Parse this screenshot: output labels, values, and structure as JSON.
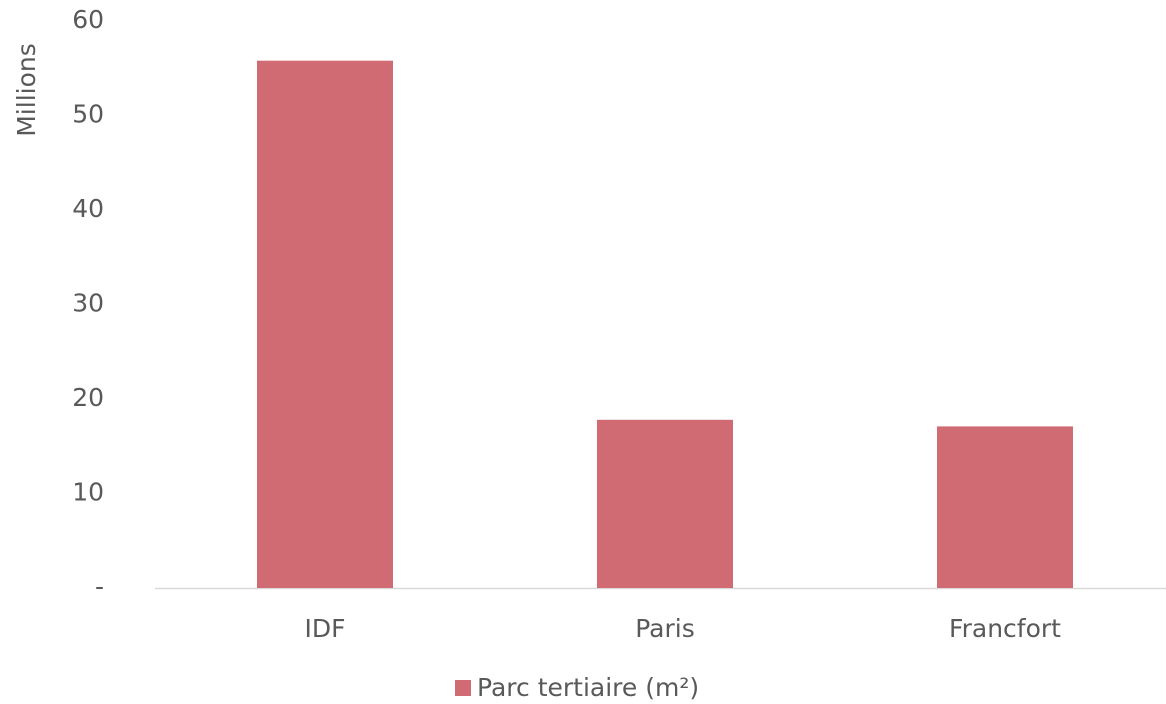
{
  "chart_data": {
    "type": "bar",
    "ylabel": "Millions",
    "categories": [
      "IDF",
      "Paris",
      "Francfort"
    ],
    "series": [
      {
        "name": "Parc tertiaire (m²)",
        "color": "#d16b73",
        "values": [
          55.8,
          17.8,
          17.1
        ]
      }
    ],
    "ylim": [
      0,
      60
    ],
    "yticks": [
      {
        "value": 0,
        "label": "-"
      },
      10,
      20,
      30,
      40,
      50,
      60
    ],
    "grid": false,
    "legend": "bottom"
  }
}
